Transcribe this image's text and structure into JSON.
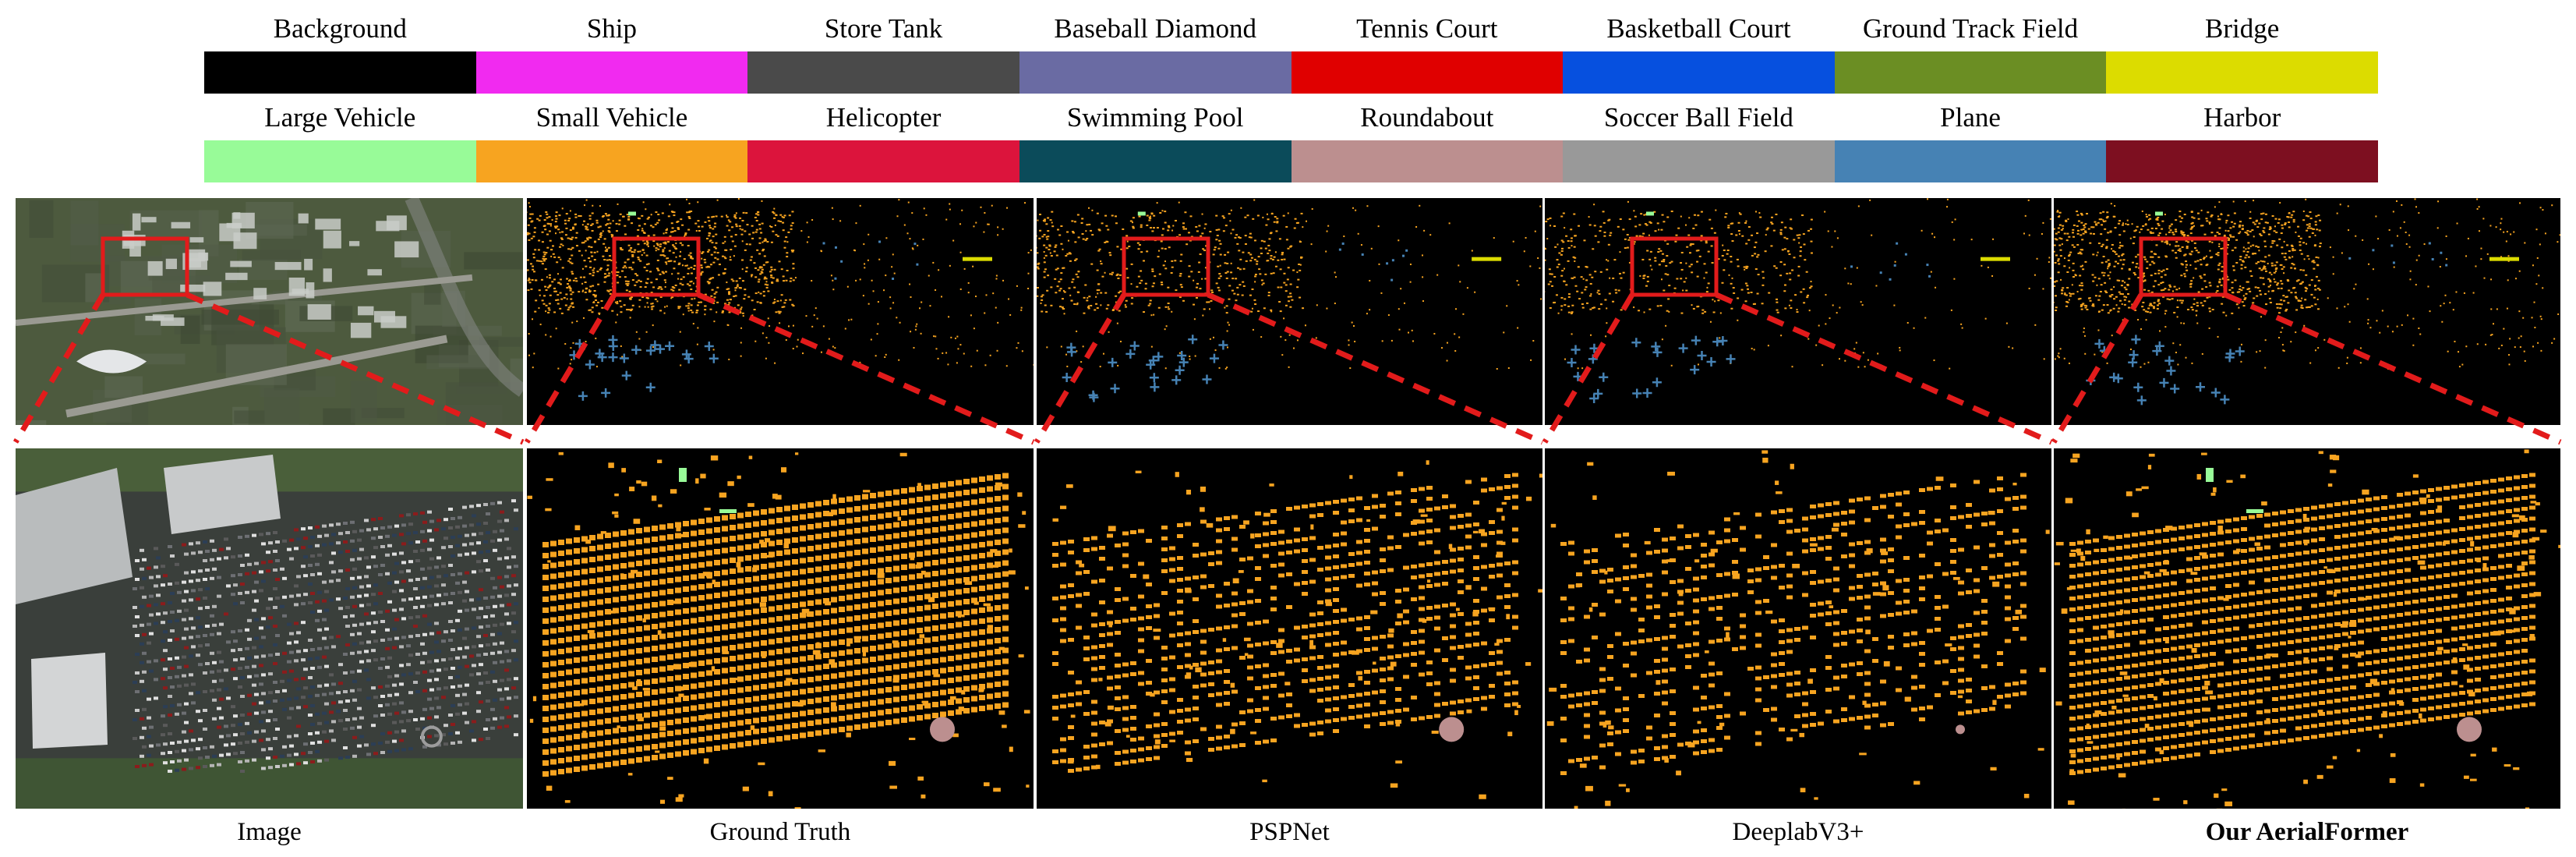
{
  "legend": {
    "row1": [
      {
        "label": "Background",
        "color": "#000000"
      },
      {
        "label": "Ship",
        "color": "#f12af0"
      },
      {
        "label": "Store Tank",
        "color": "#4a4a4a"
      },
      {
        "label": "Baseball Diamond",
        "color": "#6a6ba3"
      },
      {
        "label": "Tennis Court",
        "color": "#e00000"
      },
      {
        "label": "Basketball Court",
        "color": "#0650df"
      },
      {
        "label": "Ground Track Field",
        "color": "#6b8e23"
      },
      {
        "label": "Bridge",
        "color": "#dcdc00"
      }
    ],
    "row2": [
      {
        "label": "Large Vehicle",
        "color": "#98fb98"
      },
      {
        "label": "Small Vehicle",
        "color": "#f7a420"
      },
      {
        "label": "Helicopter",
        "color": "#dc143c"
      },
      {
        "label": "Swimming Pool",
        "color": "#0b4b5a"
      },
      {
        "label": "Roundabout",
        "color": "#bc8f8f"
      },
      {
        "label": "Soccer Ball Field",
        "color": "#999999"
      },
      {
        "label": "Plane",
        "color": "#4682b4"
      },
      {
        "label": "Harbor",
        "color": "#7d0f20"
      }
    ]
  },
  "columns": [
    {
      "caption": "Image",
      "kind": "image",
      "density": 1.0
    },
    {
      "caption": "Ground Truth",
      "kind": "gt",
      "density": 1.0
    },
    {
      "caption": "PSPNet",
      "kind": "pred",
      "density": 0.55
    },
    {
      "caption": "DeeplabV3+",
      "kind": "pred",
      "density": 0.45
    },
    {
      "caption": "Our AerialFormer",
      "kind": "pred",
      "density": 0.95,
      "bold": true
    }
  ],
  "colors": {
    "small_vehicle": "#f7a420",
    "large_vehicle": "#98fb98",
    "plane": "#4682b4",
    "bridge": "#dcdc00",
    "roundabout": "#bc8f8f",
    "highlight_box": "#e21b1b",
    "zoom_line": "#e21b1b"
  }
}
